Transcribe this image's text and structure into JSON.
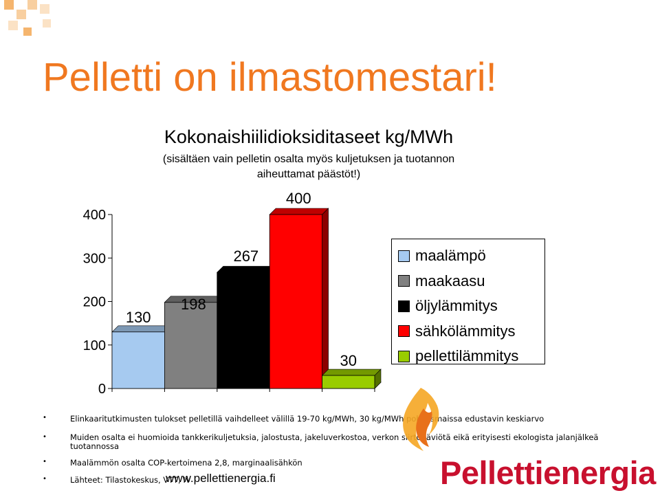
{
  "slide": {
    "title": "Pelletti on ilmastomestari!",
    "title_color": "#f07820",
    "accent_color": "#f5b56e"
  },
  "chart_data": {
    "type": "bar",
    "title": "Kokonaishiilidioksiditaseet kg/MWh",
    "subtitle_line1": "(sisältäen vain pelletin osalta myös kuljetuksen ja tuotannon",
    "subtitle_line2": "aiheuttamat päästöt!)",
    "categories": [
      "maalämpö",
      "maakaasu",
      "öljylämmitys",
      "sähkölämmitys",
      "pellettilämmitys"
    ],
    "values": [
      130,
      198,
      267,
      400,
      30
    ],
    "data_labels": [
      "130",
      "198",
      "267",
      "400",
      "30"
    ],
    "colors": [
      "#a6caf0",
      "#808080",
      "#000000",
      "#ff0000",
      "#99cc00"
    ],
    "ylim": [
      0,
      400
    ],
    "yticks": [
      "0",
      "100",
      "200",
      "300",
      "400"
    ],
    "grid": false,
    "legend": {
      "placement": "right",
      "entries": [
        "maalämpö",
        "maakaasu",
        "öljylämmitys",
        "sähkölämmitys",
        "pellettilämmitys"
      ]
    }
  },
  "notes": {
    "bullets": [
      "Elinkaaritutkimusten tulokset pelletillä vaihdelleet välillä 19-70 kg/MWh, 30 kg/MWh pohjoismaissa edustavin keskiarvo",
      "Muiden osalta ei huomioida tankkerikuljetuksia, jalostusta, jakeluverkostoa, verkon siirtohäviötä eikä erityisesti ekologista jalanjälkeä tuotannossa",
      "Maalämmön osalta COP-kertoimena 2,8, marginaalisähkön",
      "Lähteet: Tilastokeskus, VTT, IV"
    ],
    "bullet_glyph": "•"
  },
  "footer": {
    "url": "www.pellettienergia.fi",
    "logo_text": "Pellettienergia",
    "logo_color": "#c8102e"
  },
  "icons": {
    "logo": "flame-logo-icon",
    "corner": "corner-squares-icon"
  }
}
